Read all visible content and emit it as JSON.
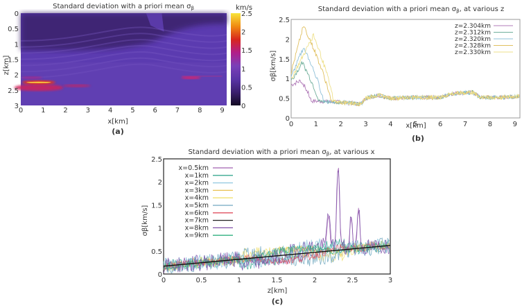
{
  "figure": {
    "panels": [
      "(a)",
      "(b)",
      "(c)"
    ]
  },
  "chart_data": [
    {
      "id": "a",
      "type": "heatmap",
      "title": "Standard deviation with a priori mean σ",
      "title_sub": "β",
      "xlabel": "x[km]",
      "ylabel": "z[km]",
      "xlim": [
        0,
        9.2
      ],
      "ylim": [
        3,
        0
      ],
      "xticks": [
        "0",
        "1",
        "2",
        "3",
        "4",
        "5",
        "6",
        "7",
        "8",
        "9"
      ],
      "yticks": [
        "0",
        "0.5",
        "1",
        "1.5",
        "2",
        "2.5",
        "3"
      ],
      "colorbar": {
        "unit": "km/s",
        "range": [
          0,
          2.5
        ],
        "ticks": [
          "0",
          "0.5",
          "1",
          "1.5",
          "2",
          "2.5"
        ],
        "colormap": "inferno-like",
        "stops": [
          "#120a22",
          "#3b1f6e",
          "#5a35a6",
          "#7a3fb8",
          "#b01e8a",
          "#d7261e",
          "#f08a12",
          "#f8e43a"
        ]
      },
      "background_color": "#5b3bb0",
      "features": [
        {
          "name": "shallow-low-zone",
          "value": 0.3,
          "desc": "darker region z 0-1.2 km across x 0-9"
        },
        {
          "name": "high-anomaly",
          "value": 2.3,
          "x": [
            0.2,
            1.4
          ],
          "z": 2.25
        },
        {
          "name": "anomaly-2",
          "value": 1.3,
          "x": [
            0.3,
            2.8
          ],
          "z": 2.42
        },
        {
          "name": "anomaly-3",
          "value": 1.2,
          "x": [
            7.2,
            9.0
          ],
          "z": 2.1
        }
      ]
    },
    {
      "id": "b",
      "type": "line",
      "title": "Standard deviation with a priori mean σ",
      "title_sub": "β",
      "title_suffix": ", at various z",
      "xlabel": "x[km]",
      "ylabel": "σβ[km/s]",
      "xlim": [
        0,
        9.2
      ],
      "ylim": [
        0,
        2.5
      ],
      "xticks": [
        "0",
        "1",
        "2",
        "3",
        "4",
        "5",
        "6",
        "7",
        "8",
        "9"
      ],
      "yticks": [
        "0",
        "0.5",
        "1",
        "1.5",
        "2",
        "2.5"
      ],
      "legend_position": "top-right",
      "series": [
        {
          "name": "z=2.304km",
          "color": "#b07ab8",
          "peak": 0.95,
          "peak_x": 0.4,
          "drop_x": 0.8
        },
        {
          "name": "z=2.312km",
          "color": "#6fae9a",
          "peak": 1.4,
          "peak_x": 0.45,
          "drop_x": 1.1
        },
        {
          "name": "z=2.320km",
          "color": "#8fc0d8",
          "peak": 1.8,
          "peak_x": 0.5,
          "drop_x": 1.3
        },
        {
          "name": "z=2.328km",
          "color": "#e0c060",
          "peak": 2.35,
          "peak_x": 0.5,
          "drop_x": 1.6
        },
        {
          "name": "z=2.330km",
          "color": "#eee08a",
          "peak": 2.1,
          "peak_x": 0.9,
          "drop_x": 1.7
        }
      ],
      "baseline": [
        {
          "x": 0,
          "y": 0.45
        },
        {
          "x": 2,
          "y": 0.4
        },
        {
          "x": 2.8,
          "y": 0.35
        },
        {
          "x": 3,
          "y": 0.5
        },
        {
          "x": 3.5,
          "y": 0.58
        },
        {
          "x": 4,
          "y": 0.5
        },
        {
          "x": 5,
          "y": 0.52
        },
        {
          "x": 6,
          "y": 0.52
        },
        {
          "x": 6.5,
          "y": 0.62
        },
        {
          "x": 7.3,
          "y": 0.65
        },
        {
          "x": 7.6,
          "y": 0.52
        },
        {
          "x": 8.5,
          "y": 0.52
        },
        {
          "x": 9.2,
          "y": 0.55
        }
      ]
    },
    {
      "id": "c",
      "type": "line",
      "title": "Standard deviation with a priori mean σ",
      "title_sub": "β",
      "title_suffix": ", at various x",
      "xlabel": "z[km]",
      "ylabel": "σβ[km/s]",
      "xlim": [
        0,
        3
      ],
      "ylim": [
        0,
        2.5
      ],
      "xticks": [
        "0",
        "0.5",
        "1",
        "1.5",
        "2",
        "2.5",
        "3"
      ],
      "yticks": [
        "0",
        "0.5",
        "1",
        "1.5",
        "2",
        "2.5"
      ],
      "legend_position": "top-left",
      "series": [
        {
          "name": "x=0.5km",
          "color": "#a060b0"
        },
        {
          "name": "x=1km",
          "color": "#3aa890"
        },
        {
          "name": "x=2km",
          "color": "#90c8e0"
        },
        {
          "name": "x=3km",
          "color": "#e8c050"
        },
        {
          "name": "x=4km",
          "color": "#f0e070"
        },
        {
          "name": "x=5km",
          "color": "#70a8c0"
        },
        {
          "name": "x=6km",
          "color": "#e05060"
        },
        {
          "name": "x=7km",
          "color": "#202020"
        },
        {
          "name": "x=8km",
          "color": "#8050a8"
        },
        {
          "name": "x=9km",
          "color": "#30b080"
        }
      ],
      "trend": {
        "z0": 0,
        "y0": 0.17,
        "z1": 3,
        "y1": 0.62
      },
      "peaks": [
        {
          "z": 2.18,
          "y": 1.33
        },
        {
          "z": 2.31,
          "y": 2.35
        },
        {
          "z": 2.48,
          "y": 1.22
        },
        {
          "z": 2.58,
          "y": 1.45
        }
      ]
    }
  ]
}
